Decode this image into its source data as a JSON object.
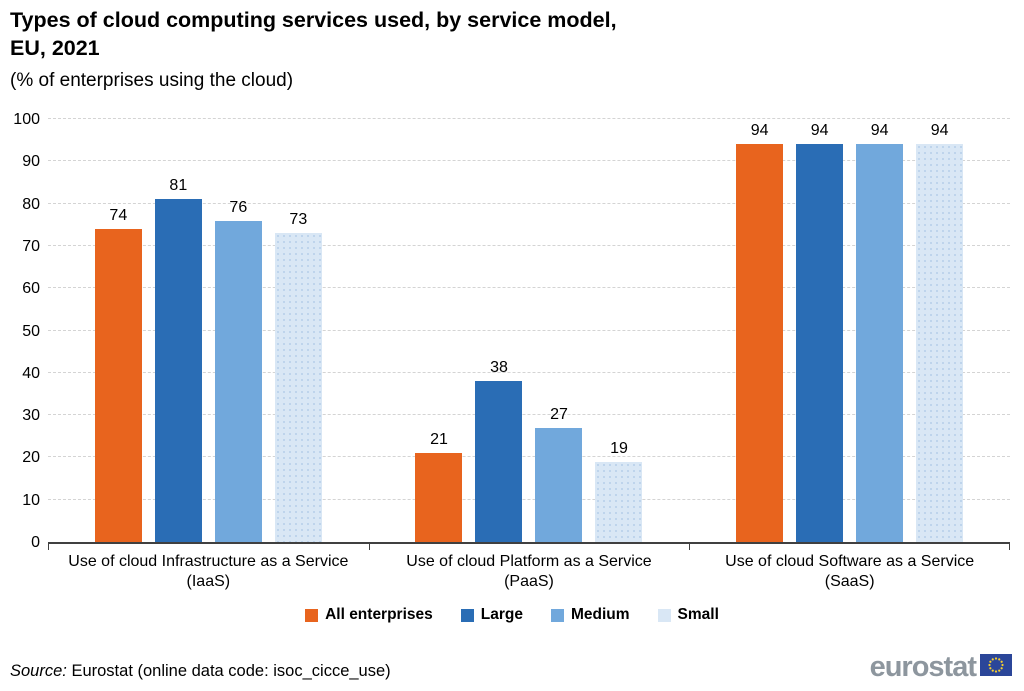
{
  "title": {
    "main": "Types of cloud computing services used, by service model,\nEU, 2021",
    "subtitle": "(% of enterprises using the cloud)"
  },
  "chart_data": {
    "type": "bar",
    "title": "Types of cloud computing services used, by service model, EU, 2021",
    "subtitle": "(% of enterprises using the cloud)",
    "categories": [
      "Use of cloud Infrastructure as a Service\n(IaaS)",
      "Use of cloud Platform as a Service\n(PaaS)",
      "Use of cloud Software as a Service\n(SaaS)"
    ],
    "series": [
      {
        "name": "All enterprises",
        "color": "#e8641e",
        "dotted": false,
        "values": [
          74,
          21,
          94
        ]
      },
      {
        "name": "Large",
        "color": "#2a6db5",
        "dotted": false,
        "values": [
          81,
          38,
          94
        ]
      },
      {
        "name": "Medium",
        "color": "#71a8dc",
        "dotted": false,
        "values": [
          76,
          27,
          94
        ]
      },
      {
        "name": "Small",
        "color": "#d9e7f5",
        "dotted": true,
        "values": [
          73,
          19,
          94
        ]
      }
    ],
    "ylim": [
      0,
      100
    ],
    "ytick_step": 10,
    "yticks": [
      0,
      10,
      20,
      30,
      40,
      50,
      60,
      70,
      80,
      90,
      100
    ],
    "grid": true,
    "grid_style": "dashed",
    "value_labels": true,
    "legend_position": "bottom"
  },
  "footer": {
    "source_prefix": "Source:",
    "source_text": " Eurostat (online data code: isoc_cicce_use)",
    "logo_text": "eurostat",
    "logo_flag_color": "#2b4699",
    "logo_star_color": "#f8d12e"
  }
}
